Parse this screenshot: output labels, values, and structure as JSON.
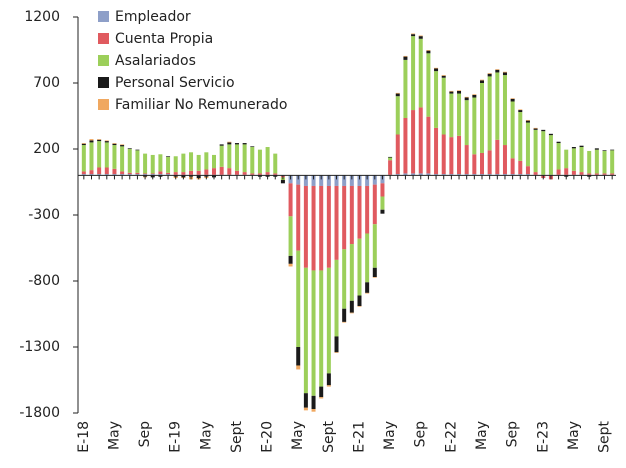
{
  "chart_data": {
    "type": "bar",
    "stacked": true,
    "categories": [
      "E-18",
      null,
      null,
      null,
      "May",
      null,
      null,
      null,
      "Sep",
      null,
      null,
      null,
      "E-19",
      null,
      null,
      null,
      "May",
      null,
      null,
      null,
      "Sept",
      null,
      null,
      null,
      "E-20",
      null,
      null,
      null,
      "May",
      null,
      null,
      null,
      "Sept",
      null,
      null,
      null,
      "E-21",
      null,
      null,
      null,
      "May",
      null,
      null,
      null,
      "Sep",
      null,
      null,
      null,
      "E-22",
      null,
      null,
      null,
      "May",
      null,
      null,
      null,
      "Sep",
      null,
      null,
      null,
      "E-23",
      null,
      null,
      null,
      "May",
      null,
      null,
      null,
      "Sept",
      null
    ],
    "series": [
      {
        "name": "Empleador",
        "color": "#8e9fc8",
        "values": [
          10,
          10,
          10,
          10,
          10,
          10,
          10,
          10,
          10,
          10,
          10,
          10,
          5,
          5,
          5,
          5,
          5,
          5,
          5,
          5,
          5,
          5,
          5,
          5,
          5,
          5,
          -5,
          -60,
          -70,
          -80,
          -80,
          -80,
          -80,
          -80,
          -80,
          -80,
          -80,
          -80,
          -70,
          -60,
          5,
          10,
          15,
          15,
          15,
          15,
          10,
          10,
          10,
          10,
          10,
          10,
          10,
          10,
          10,
          10,
          10,
          10,
          10,
          5,
          5,
          5,
          5,
          5,
          5,
          5,
          5,
          5,
          5,
          5
        ]
      },
      {
        "name": "Cuenta Propia",
        "color": "#e05a5f",
        "values": [
          20,
          30,
          50,
          50,
          40,
          20,
          10,
          10,
          5,
          5,
          20,
          10,
          20,
          20,
          30,
          30,
          40,
          50,
          60,
          50,
          30,
          20,
          10,
          10,
          20,
          10,
          -10,
          -250,
          -500,
          -620,
          -640,
          -640,
          -620,
          -560,
          -480,
          -440,
          -400,
          -360,
          -300,
          -100,
          110,
          300,
          420,
          480,
          500,
          430,
          350,
          300,
          280,
          290,
          220,
          150,
          160,
          180,
          260,
          220,
          120,
          100,
          60,
          20,
          -20,
          -30,
          40,
          50,
          30,
          20,
          10,
          10,
          10,
          10
        ]
      },
      {
        "name": "Asalariados",
        "color": "#9ccf5a",
        "values": [
          200,
          210,
          200,
          190,
          180,
          190,
          180,
          170,
          150,
          140,
          130,
          120,
          120,
          140,
          140,
          120,
          130,
          100,
          160,
          180,
          200,
          210,
          200,
          180,
          190,
          150,
          -20,
          -300,
          -730,
          -950,
          -950,
          -880,
          -800,
          -580,
          -450,
          -430,
          -430,
          -370,
          -330,
          -100,
          20,
          290,
          440,
          560,
          520,
          480,
          430,
          430,
          330,
          320,
          340,
          430,
          530,
          560,
          510,
          530,
          430,
          370,
          330,
          320,
          330,
          300,
          200,
          140,
          170,
          190,
          170,
          180,
          170,
          175
        ]
      },
      {
        "name": "Personal Servicio",
        "color": "#1a1a1a",
        "values": [
          10,
          15,
          10,
          10,
          10,
          10,
          5,
          5,
          -10,
          -15,
          -10,
          5,
          -10,
          -15,
          -10,
          -20,
          -10,
          -15,
          10,
          15,
          10,
          10,
          5,
          -10,
          -10,
          -10,
          -25,
          -60,
          -140,
          -110,
          -100,
          -80,
          -90,
          -120,
          -100,
          -90,
          -80,
          -80,
          -70,
          -30,
          5,
          20,
          25,
          15,
          20,
          20,
          20,
          15,
          15,
          20,
          20,
          20,
          20,
          20,
          20,
          20,
          20,
          15,
          15,
          10,
          10,
          10,
          10,
          -10,
          10,
          10,
          -10,
          10,
          5,
          5
        ]
      },
      {
        "name": "Familiar No Remunerado",
        "color": "#f0a860",
        "values": [
          5,
          10,
          5,
          5,
          5,
          5,
          0,
          0,
          -5,
          0,
          0,
          0,
          -10,
          -5,
          -20,
          -10,
          -10,
          0,
          0,
          5,
          0,
          0,
          0,
          0,
          0,
          0,
          0,
          -20,
          -30,
          -20,
          -20,
          -10,
          -10,
          -5,
          -5,
          -5,
          -5,
          -5,
          -5,
          0,
          0,
          5,
          5,
          5,
          5,
          5,
          5,
          5,
          5,
          5,
          5,
          5,
          5,
          5,
          5,
          5,
          5,
          5,
          5,
          5,
          0,
          0,
          0,
          0,
          0,
          0,
          0,
          0,
          0,
          0
        ]
      }
    ],
    "ylim": [
      -1800,
      1200
    ],
    "yticks": [
      -1800,
      -1300,
      -800,
      -300,
      200,
      700,
      1200
    ]
  }
}
